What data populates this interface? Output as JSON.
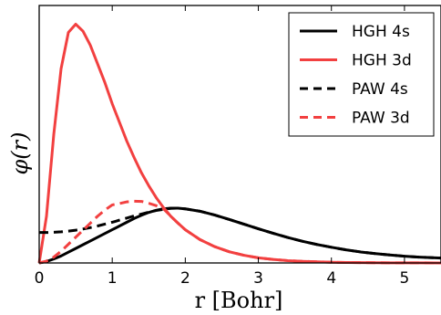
{
  "chart_data": {
    "type": "line",
    "xlabel": "r [Bohr]",
    "ylabel": "φ(r)",
    "xlim": [
      0,
      5.5
    ],
    "ylim": [
      0,
      1.1
    ],
    "xticks": [
      "0",
      "1",
      "2",
      "3",
      "4",
      "5"
    ],
    "xtick_values": [
      0,
      1,
      2,
      3,
      4,
      5
    ],
    "yticks_shown": false,
    "grid": false,
    "legend_position": "top-right",
    "x": [
      0,
      0.1,
      0.2,
      0.3,
      0.4,
      0.5,
      0.6,
      0.7,
      0.8,
      0.9,
      1.0,
      1.1,
      1.2,
      1.3,
      1.4,
      1.5,
      1.6,
      1.7,
      1.8,
      1.9,
      2.0,
      2.2,
      2.4,
      2.6,
      2.8,
      3.0,
      3.2,
      3.4,
      3.6,
      3.8,
      4.0,
      4.2,
      4.4,
      4.6,
      4.8,
      5.0,
      5.2,
      5.5
    ],
    "series": [
      {
        "name": "HGH 4s",
        "color": "#000000",
        "style": "solid",
        "values": [
          0,
          0.006,
          0.017,
          0.03,
          0.046,
          0.062,
          0.078,
          0.094,
          0.11,
          0.126,
          0.142,
          0.158,
          0.174,
          0.19,
          0.204,
          0.216,
          0.225,
          0.231,
          0.234,
          0.234,
          0.231,
          0.221,
          0.205,
          0.186,
          0.166,
          0.146,
          0.127,
          0.109,
          0.093,
          0.079,
          0.067,
          0.056,
          0.047,
          0.04,
          0.034,
          0.029,
          0.025,
          0.021
        ]
      },
      {
        "name": "HGH 3d",
        "color": "#f24040",
        "style": "solid",
        "values": [
          0,
          0.2,
          0.55,
          0.83,
          0.985,
          1.02,
          0.99,
          0.93,
          0.85,
          0.77,
          0.68,
          0.6,
          0.52,
          0.45,
          0.385,
          0.33,
          0.28,
          0.237,
          0.2,
          0.17,
          0.142,
          0.1,
          0.07,
          0.048,
          0.033,
          0.022,
          0.015,
          0.01,
          0.007,
          0.005,
          0.003,
          0.002,
          0.0015,
          0.001,
          0.0007,
          0.0005,
          0.0003,
          0.0002
        ]
      },
      {
        "name": "PAW 4s",
        "color": "#000000",
        "style": "dashed",
        "values": [
          0.13,
          0.13,
          0.131,
          0.133,
          0.136,
          0.14,
          0.145,
          0.151,
          0.158,
          0.166,
          0.174,
          0.183,
          0.192,
          0.201,
          0.209,
          0.217,
          0.224,
          0.229,
          0.233,
          0.234,
          0.231,
          0.221,
          0.205,
          0.186,
          0.166,
          0.146,
          0.127,
          0.109,
          0.093,
          0.079,
          0.067,
          0.056,
          0.047,
          0.04,
          0.034,
          0.029,
          0.025,
          0.021
        ]
      },
      {
        "name": "PAW 3d",
        "color": "#f24040",
        "style": "dashed",
        "values": [
          0,
          0.008,
          0.025,
          0.05,
          0.08,
          0.11,
          0.14,
          0.17,
          0.2,
          0.226,
          0.248,
          0.254,
          0.261,
          0.264,
          0.263,
          0.255,
          0.245,
          0.232,
          0.2,
          0.17,
          0.142,
          0.1,
          0.07,
          0.048,
          0.033,
          0.022,
          0.015,
          0.01,
          0.007,
          0.005,
          0.003,
          0.002,
          0.0015,
          0.001,
          0.0007,
          0.0005,
          0.0003,
          0.0002
        ]
      }
    ]
  }
}
